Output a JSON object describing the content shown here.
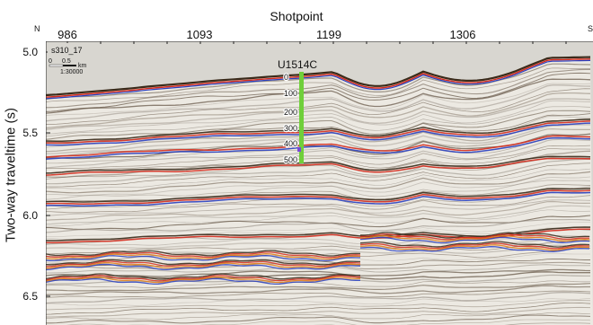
{
  "header": {
    "title": "Shotpoint",
    "left_direction": "N",
    "right_direction": "S"
  },
  "x_axis": {
    "label": "Shotpoint",
    "ticks": [
      "986",
      "1093",
      "1199",
      "1306"
    ]
  },
  "y_axis": {
    "label": "Two-way traveltime (s)",
    "ticks": [
      "5.0",
      "5.5",
      "6.0",
      "6.5"
    ]
  },
  "profile_info": {
    "line_name": "s310_17",
    "scale_values": [
      "0",
      "0.5"
    ],
    "scale_unit": "km",
    "scale_ratio": "1:30000"
  },
  "well": {
    "name": "U1514C",
    "depth_labels": [
      "0",
      "100",
      "200",
      "300",
      "400",
      "500"
    ],
    "log_color": "#6fcf3a"
  },
  "colors": {
    "background": "#d8d6d0",
    "reflector_dark": "#3a2a1a",
    "reflector_red": "#d42a1c",
    "reflector_blue": "#2a3fbf",
    "reflector_orange": "#e07a10"
  }
}
